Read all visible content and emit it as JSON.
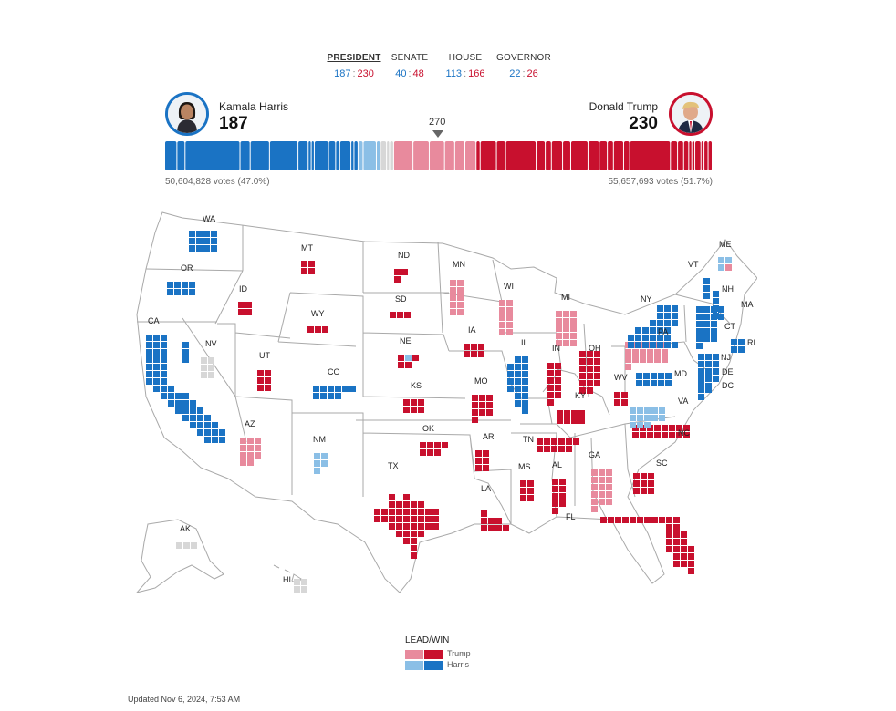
{
  "tabs": [
    {
      "label": "PRESIDENT",
      "dem": "187",
      "rep": "230",
      "active": true
    },
    {
      "label": "SENATE",
      "dem": "40",
      "rep": "48",
      "active": false
    },
    {
      "label": "HOUSE",
      "dem": "113",
      "rep": "166",
      "active": false
    },
    {
      "label": "GOVERNOR",
      "dem": "22",
      "rep": "26",
      "active": false
    }
  ],
  "harris": {
    "name": "Kamala Harris",
    "total": "187",
    "votes": "50,604,828 votes (47.0%)"
  },
  "trump": {
    "name": "Donald Trump",
    "total": "230",
    "votes": "55,657,693 votes (51.7%)"
  },
  "threshold": "270",
  "colors": {
    "dem_win": "#1a73c4",
    "dem_lead": "#8bbfe6",
    "rep_win": "#c8102e",
    "rep_lead": "#e88a9d",
    "undecided": "#d7d7d7"
  },
  "states": [
    {
      "abbr": "WA",
      "ev": 12,
      "status": "dem_win"
    },
    {
      "abbr": "OR",
      "ev": 8,
      "status": "dem_win"
    },
    {
      "abbr": "CA",
      "ev": 54,
      "status": "dem_win"
    },
    {
      "abbr": "NV",
      "ev": 6,
      "status": "undecided"
    },
    {
      "abbr": "ID",
      "ev": 4,
      "status": "rep_win"
    },
    {
      "abbr": "MT",
      "ev": 4,
      "status": "rep_win"
    },
    {
      "abbr": "WY",
      "ev": 3,
      "status": "rep_win"
    },
    {
      "abbr": "UT",
      "ev": 6,
      "status": "rep_win"
    },
    {
      "abbr": "CO",
      "ev": 10,
      "status": "dem_win"
    },
    {
      "abbr": "AZ",
      "ev": 11,
      "status": "rep_lead"
    },
    {
      "abbr": "NM",
      "ev": 5,
      "status": "dem_lead"
    },
    {
      "abbr": "ND",
      "ev": 3,
      "status": "rep_win"
    },
    {
      "abbr": "SD",
      "ev": 3,
      "status": "rep_win"
    },
    {
      "abbr": "NE",
      "ev": 5,
      "status": "rep_win",
      "note": "one district lean Harris, one Trump lead"
    },
    {
      "abbr": "KS",
      "ev": 6,
      "status": "rep_win"
    },
    {
      "abbr": "OK",
      "ev": 7,
      "status": "rep_win"
    },
    {
      "abbr": "TX",
      "ev": 40,
      "status": "rep_win"
    },
    {
      "abbr": "MN",
      "ev": 10,
      "status": "rep_lead"
    },
    {
      "abbr": "IA",
      "ev": 6,
      "status": "rep_win"
    },
    {
      "abbr": "MO",
      "ev": 10,
      "status": "rep_win"
    },
    {
      "abbr": "AR",
      "ev": 6,
      "status": "rep_win"
    },
    {
      "abbr": "LA",
      "ev": 8,
      "status": "rep_win"
    },
    {
      "abbr": "WI",
      "ev": 10,
      "status": "rep_lead"
    },
    {
      "abbr": "IL",
      "ev": 19,
      "status": "dem_win"
    },
    {
      "abbr": "MI",
      "ev": 15,
      "status": "rep_lead"
    },
    {
      "abbr": "IN",
      "ev": 11,
      "status": "rep_win"
    },
    {
      "abbr": "OH",
      "ev": 17,
      "status": "rep_win"
    },
    {
      "abbr": "KY",
      "ev": 8,
      "status": "rep_win"
    },
    {
      "abbr": "TN",
      "ev": 11,
      "status": "rep_win"
    },
    {
      "abbr": "MS",
      "ev": 6,
      "status": "rep_win"
    },
    {
      "abbr": "AL",
      "ev": 9,
      "status": "rep_win"
    },
    {
      "abbr": "GA",
      "ev": 16,
      "status": "rep_lead"
    },
    {
      "abbr": "FL",
      "ev": 30,
      "status": "rep_win"
    },
    {
      "abbr": "SC",
      "ev": 9,
      "status": "rep_win"
    },
    {
      "abbr": "NC",
      "ev": 16,
      "status": "rep_win"
    },
    {
      "abbr": "WV",
      "ev": 4,
      "status": "rep_win"
    },
    {
      "abbr": "VA",
      "ev": 13,
      "status": "dem_lead"
    },
    {
      "abbr": "PA",
      "ev": 19,
      "status": "rep_lead"
    },
    {
      "abbr": "NY",
      "ev": 28,
      "status": "dem_win"
    },
    {
      "abbr": "MD",
      "ev": 10,
      "status": "dem_win"
    },
    {
      "abbr": "DE",
      "ev": 3,
      "status": "dem_win"
    },
    {
      "abbr": "DC",
      "ev": 3,
      "status": "dem_win"
    },
    {
      "abbr": "NJ",
      "ev": 14,
      "status": "dem_win"
    },
    {
      "abbr": "CT",
      "ev": 7,
      "status": "dem_win"
    },
    {
      "abbr": "RI",
      "ev": 4,
      "status": "dem_win"
    },
    {
      "abbr": "MA",
      "ev": 11,
      "status": "dem_win"
    },
    {
      "abbr": "VT",
      "ev": 3,
      "status": "dem_win"
    },
    {
      "abbr": "NH",
      "ev": 4,
      "status": "dem_win"
    },
    {
      "abbr": "ME",
      "ev": 4,
      "status": "dem_lead",
      "note": "one district Trump lead"
    },
    {
      "abbr": "AK",
      "ev": 3,
      "status": "undecided"
    },
    {
      "abbr": "HI",
      "ev": 4,
      "status": "undecided"
    }
  ],
  "legend": {
    "title": "LEAD/WIN",
    "trump": "Trump",
    "harris": "Harris"
  },
  "updated": "Updated Nov 6, 2024, 7:53 AM"
}
